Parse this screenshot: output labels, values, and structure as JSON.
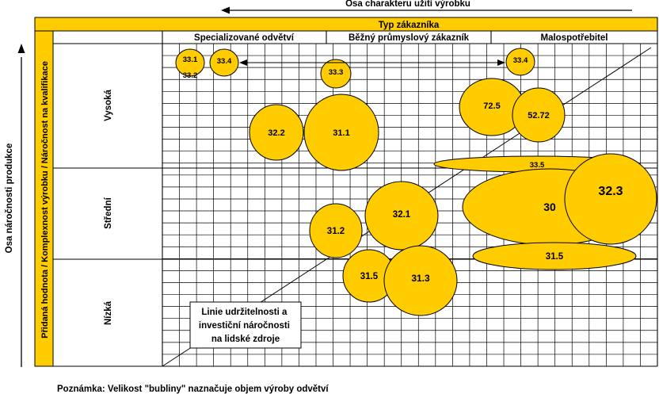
{
  "chart_data": {
    "type": "scatter",
    "top_axis_label": "Osa charakteru užití výrobku",
    "left_axis_label": "Osa náročnosti produkce",
    "column_header": "Typ zákazníka",
    "columns": [
      "Specializované odvětví",
      "Běžný průmyslový zákazník",
      "Malospotřebitel"
    ],
    "row_header": "Přidaná hodnota / Komplexnost výrobku / Náročnost na kvalifikace",
    "rows": [
      "Vysoká",
      "Střední",
      "Nízká"
    ],
    "bubble_labels": [
      "33.1",
      "33.2",
      "33.4",
      "33.3",
      "33.4",
      "72.5",
      "52.72",
      "32.2",
      "31.1",
      "33.5",
      "32.3",
      "30",
      "32.1",
      "31.2",
      "31.5",
      "31.3",
      "31.5"
    ],
    "line_label": "Linie udržitelnosti a investiční náročnosti na lidské zdroje",
    "note": "Poznámka: Velikost \"bubliny\" naznačuje objem výroby odvětví",
    "colors": {
      "bubble_fill": "#FFCC00",
      "header_fill": "#FFCC00",
      "outline": "#000000"
    }
  }
}
